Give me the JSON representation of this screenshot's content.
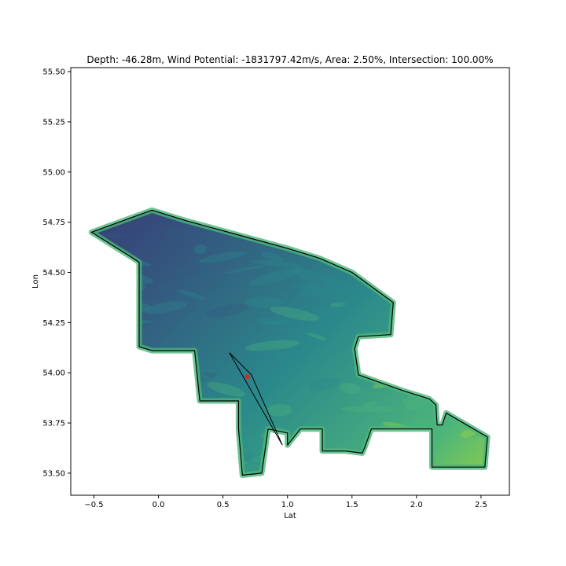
{
  "chart_data": {
    "type": "scatter",
    "title": "Depth: -46.28m, Wind Potential: -1831797.42m/s, Area: 2.50%, Intersection: 100.00%",
    "xlabel": "Lat",
    "ylabel": "Lon",
    "xlim": [
      -0.68,
      2.72
    ],
    "ylim": [
      53.39,
      55.52
    ],
    "xticks": [
      -0.5,
      0.0,
      0.5,
      1.0,
      1.5,
      2.0,
      2.5
    ],
    "xtick_labels": [
      "−0.5",
      "0.0",
      "0.5",
      "1.0",
      "1.5",
      "2.0",
      "2.5"
    ],
    "yticks": [
      53.5,
      53.75,
      54.0,
      54.25,
      54.5,
      54.75,
      55.0,
      55.25,
      55.5
    ],
    "ytick_labels": [
      "53.50",
      "53.75",
      "54.00",
      "54.25",
      "54.50",
      "54.75",
      "55.00",
      "55.25",
      "55.50"
    ],
    "grid": false,
    "colormap": "viridis",
    "region_outline": [
      [
        -0.52,
        54.7
      ],
      [
        -0.05,
        54.81
      ],
      [
        0.2,
        54.76
      ],
      [
        0.6,
        54.69
      ],
      [
        1.0,
        54.62
      ],
      [
        1.25,
        54.57
      ],
      [
        1.5,
        54.5
      ],
      [
        1.82,
        54.35
      ],
      [
        1.8,
        54.19
      ],
      [
        1.55,
        54.18
      ],
      [
        1.52,
        54.12
      ],
      [
        1.55,
        53.99
      ],
      [
        1.9,
        53.91
      ],
      [
        2.1,
        53.87
      ],
      [
        2.15,
        53.84
      ],
      [
        2.16,
        53.74
      ],
      [
        2.2,
        53.74
      ],
      [
        2.23,
        53.8
      ],
      [
        2.55,
        53.68
      ],
      [
        2.53,
        53.53
      ],
      [
        2.35,
        53.53
      ],
      [
        2.12,
        53.53
      ],
      [
        2.12,
        53.72
      ],
      [
        1.65,
        53.72
      ],
      [
        1.6,
        53.63
      ],
      [
        1.58,
        53.6
      ],
      [
        1.45,
        53.61
      ],
      [
        1.27,
        53.61
      ],
      [
        1.27,
        53.72
      ],
      [
        1.1,
        53.72
      ],
      [
        1.0,
        53.64
      ],
      [
        1.0,
        53.7
      ],
      [
        0.85,
        53.72
      ],
      [
        0.8,
        53.5
      ],
      [
        0.65,
        53.49
      ],
      [
        0.62,
        53.72
      ],
      [
        0.62,
        53.86
      ],
      [
        0.42,
        53.86
      ],
      [
        0.32,
        53.86
      ],
      [
        0.3,
        53.99
      ],
      [
        0.28,
        54.11
      ],
      [
        -0.05,
        54.11
      ],
      [
        -0.15,
        54.13
      ],
      [
        -0.15,
        54.55
      ],
      [
        -0.22,
        54.58
      ],
      [
        -0.52,
        54.7
      ]
    ],
    "turbine_line": [
      [
        0.55,
        54.1
      ],
      [
        0.72,
        53.99
      ],
      [
        0.96,
        53.64
      ],
      [
        0.55,
        54.1
      ]
    ],
    "marker": {
      "x": 0.69,
      "y": 53.98,
      "color": "#d62728"
    },
    "colors": {
      "low": "#3b1f6b",
      "mid_low": "#34587f",
      "mid": "#2a8a8b",
      "mid_high": "#4cb57a",
      "high": "#a4d63b",
      "outline": "#000000"
    }
  }
}
